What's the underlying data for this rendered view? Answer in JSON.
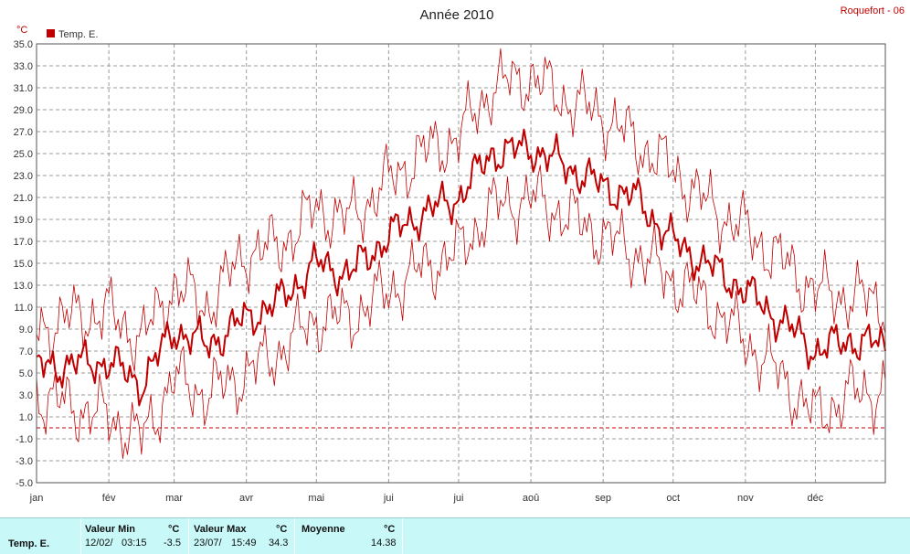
{
  "station": "Roquefort - 06",
  "chart_data": {
    "type": "line",
    "title": "Année 2010",
    "ylabel": "°C",
    "ylim": [
      -5.0,
      35.0
    ],
    "yticks": [
      "35.0",
      "33.0",
      "31.0",
      "29.0",
      "27.0",
      "25.0",
      "23.0",
      "21.0",
      "19.0",
      "17.0",
      "15.0",
      "13.0",
      "11.0",
      "9.0",
      "7.0",
      "5.0",
      "3.0",
      "1.0",
      "-1.0",
      "-3.0",
      "-5.0"
    ],
    "months": [
      "jan",
      "fév",
      "mar",
      "avr",
      "mai",
      "jui",
      "jui",
      "aoû",
      "sep",
      "oct",
      "nov",
      "déc"
    ],
    "legend": [
      "Temp. E."
    ],
    "grid": true,
    "reference_line": 0,
    "series": [
      {
        "name": "Temp. E.",
        "role": "mean",
        "color": "#c00000",
        "x": [
          1,
          15,
          32,
          46,
          60,
          74,
          91,
          105,
          121,
          135,
          152,
          166,
          182,
          196,
          213,
          227,
          244,
          258,
          274,
          288,
          305,
          319,
          335,
          349,
          365
        ],
        "values": [
          5.5,
          5.8,
          6.0,
          4.0,
          9.0,
          7.5,
          10.0,
          11.5,
          15.0,
          14.0,
          17.5,
          19.5,
          21.0,
          25.0,
          25.5,
          24.0,
          22.0,
          21.0,
          17.0,
          15.0,
          12.5,
          10.0,
          7.0,
          8.0,
          7.5
        ]
      },
      {
        "role": "max",
        "color": "#c00000",
        "x": [
          1,
          15,
          32,
          46,
          60,
          74,
          91,
          105,
          121,
          135,
          152,
          166,
          182,
          196,
          213,
          227,
          244,
          258,
          274,
          288,
          305,
          319,
          335,
          349,
          365
        ],
        "values": [
          9.0,
          10.0,
          10.5,
          8.0,
          13.0,
          11.0,
          16.0,
          16.5,
          20.0,
          19.0,
          22.5,
          25.0,
          26.5,
          31.0,
          32.0,
          30.0,
          28.5,
          26.0,
          23.5,
          20.5,
          18.0,
          15.5,
          12.5,
          12.0,
          11.5
        ]
      },
      {
        "role": "min",
        "color": "#c00000",
        "x": [
          1,
          15,
          32,
          46,
          60,
          74,
          91,
          105,
          121,
          135,
          152,
          166,
          182,
          196,
          213,
          227,
          244,
          258,
          274,
          288,
          305,
          319,
          335,
          349,
          365
        ],
        "values": [
          3.0,
          2.0,
          1.0,
          -1.0,
          4.5,
          3.0,
          5.0,
          7.0,
          10.0,
          10.0,
          12.5,
          14.5,
          16.0,
          20.0,
          21.0,
          19.5,
          17.5,
          16.0,
          13.5,
          11.5,
          8.0,
          5.0,
          1.0,
          3.0,
          3.5
        ]
      }
    ]
  },
  "stats": {
    "row_label": "Temp. E.",
    "min_label": "Valeur Min",
    "min_unit": "°C",
    "min_date": "12/02/",
    "min_time": "03:15",
    "min_value": "-3.5",
    "max_label": "Valeur Max",
    "max_unit": "°C",
    "max_date": "23/07/",
    "max_time": "15:49",
    "max_value": "34.3",
    "avg_label": "Moyenne",
    "avg_unit": "°C",
    "avg_value": "14.38"
  }
}
